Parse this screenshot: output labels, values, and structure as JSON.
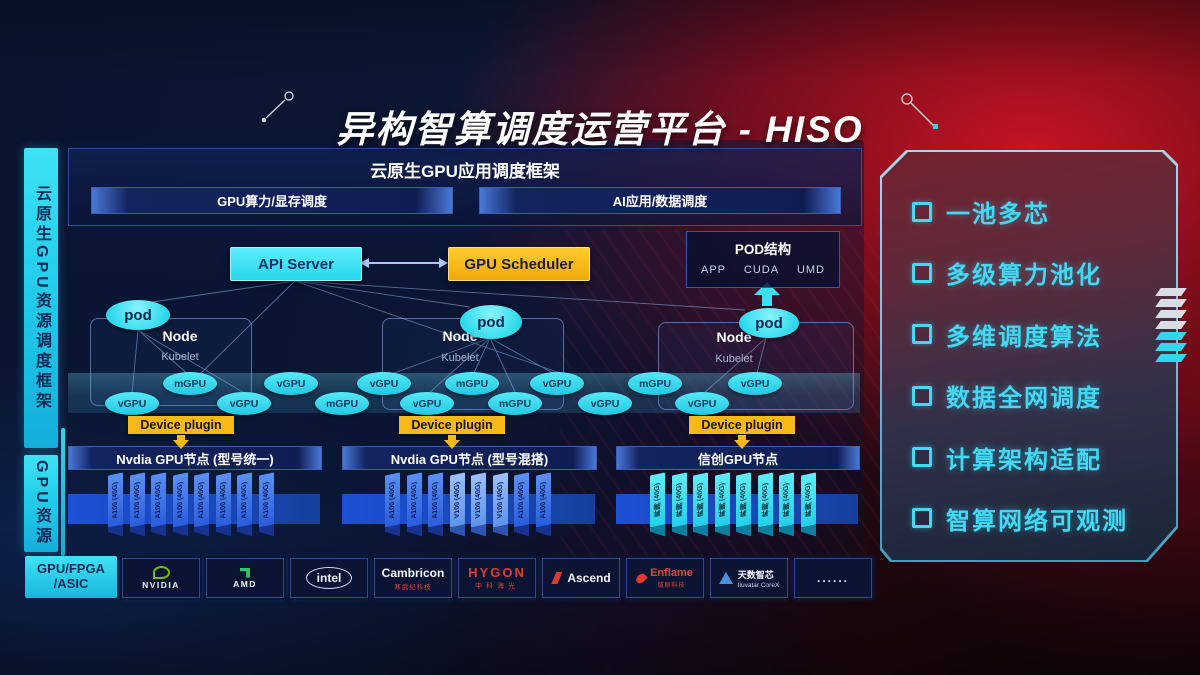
{
  "title": "异构智算调度运营平台 - HISO",
  "left_sidebar": {
    "bar1": "云原生GPU资源调度框架",
    "bar2": "GPU资源"
  },
  "framework": {
    "header": "云原生GPU应用调度框架",
    "sub_bars": [
      "GPU算力/显存调度",
      "AI应用/数据调度"
    ]
  },
  "scheduler": {
    "api_server": "API Server",
    "gpu_scheduler": "GPU Scheduler"
  },
  "pod_structure": {
    "title": "POD结构",
    "items": [
      "APP",
      "CUDA",
      "UMD"
    ]
  },
  "nodes": [
    {
      "pod": "pod",
      "label": "Node",
      "sub": "Kubelet",
      "device_plugin": "Device plugin",
      "bar": "Nvdia GPU节点 (型号统一)"
    },
    {
      "pod": "pod",
      "label": "Node",
      "sub": "Kubelet",
      "device_plugin": "Device plugin",
      "bar": "Nvdia GPU节点 (型号混搭)"
    },
    {
      "pod": "pod",
      "label": "Node",
      "sub": "Kubelet",
      "device_plugin": "Device plugin",
      "bar": "信创GPU节点"
    }
  ],
  "gpu_ellipses": [
    {
      "label": "vGPU",
      "row": "low"
    },
    {
      "label": "mGPU",
      "row": "up"
    },
    {
      "label": "vGPU",
      "row": "low"
    },
    {
      "label": "vGPU",
      "row": "up"
    },
    {
      "label": "mGPU",
      "row": "low"
    },
    {
      "label": "vGPU",
      "row": "up"
    },
    {
      "label": "vGPU",
      "row": "low"
    },
    {
      "label": "mGPU",
      "row": "up"
    },
    {
      "label": "mGPU",
      "row": "low"
    },
    {
      "label": "vGPU",
      "row": "up"
    },
    {
      "label": "vGPU",
      "row": "low"
    },
    {
      "label": "mGPU",
      "row": "up"
    },
    {
      "label": "vGPU",
      "row": "low"
    },
    {
      "label": "vGPU",
      "row": "up"
    }
  ],
  "gpu_cards": {
    "groups": [
      {
        "tone": "blue",
        "cards": [
          "A100 (40G)",
          "A100 (40G)",
          "A100 (40G)",
          "A100 (40G)",
          "A100 (40G)",
          "A100 (40G)",
          "A100 (40G)",
          "A100 (40G)"
        ]
      },
      {
        "tone": "blue",
        "cards": [
          "A100 (40G)",
          "A100 (40G)",
          "A100 (40G)",
          "V100 (40G)",
          "V100 (40G)",
          "V100 (40G)",
          "A100 (40G)",
          "A100 (40G)"
        ]
      },
      {
        "tone": "cyan",
        "cards": [
          "昇腾 (40G)",
          "昇腾 (40G)",
          "昇腾 (40G)",
          "昇腾 (40G)",
          "昇腾 (40G)",
          "昇腾 (40G)",
          "昇腾 (40G)",
          "昇腾 (40G)"
        ]
      }
    ]
  },
  "vendors": {
    "label_line1": "GPU/FPGA",
    "label_line2": "/ASIC",
    "logos": [
      {
        "name": "nvidia",
        "text": "NVIDIA"
      },
      {
        "name": "amd",
        "text": "AMD"
      },
      {
        "name": "intel",
        "text": "intel"
      },
      {
        "name": "cambricon",
        "text": "Cambricon",
        "sub": "寒武纪科技"
      },
      {
        "name": "hygon",
        "text": "HYGON",
        "sub": "中科海光"
      },
      {
        "name": "ascend",
        "text": "Ascend"
      },
      {
        "name": "enflame",
        "text": "Enflame",
        "sub": "燧原科技"
      },
      {
        "name": "iluvatar",
        "text": "天数智芯",
        "sub": "Iluvatar CoreX"
      },
      {
        "name": "more",
        "text": "......"
      }
    ]
  },
  "features": [
    "一池多芯",
    "多级算力池化",
    "多维调度算法",
    "数据全网调度",
    "计算架构适配",
    "智算网络可观测"
  ],
  "colors": {
    "accent_cyan": "#35dff2",
    "accent_yellow": "#f7b916",
    "card_blue": "#3a74e8",
    "nvidia_green": "#76b900",
    "logo_red": "#d8352a"
  }
}
